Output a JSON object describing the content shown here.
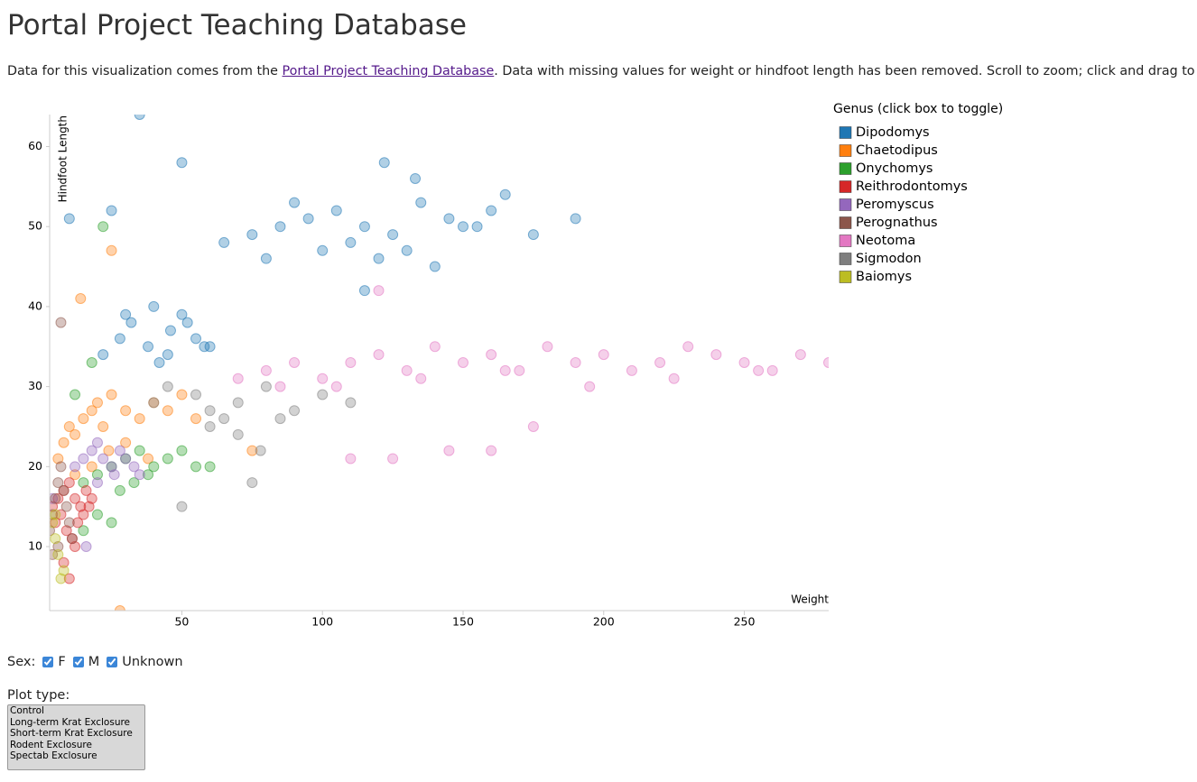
{
  "header": {
    "title": "Portal Project Teaching Database"
  },
  "intro": {
    "before": "Data for this visualization comes from the ",
    "link": "Portal Project Teaching Database",
    "after": ". Data with missing values for weight or hindfoot length has been removed. Scroll to zoom; click and drag to move."
  },
  "chart_data": {
    "type": "scatter",
    "x_label": "Weight",
    "y_label": "Hindfoot Length",
    "legend_title": "Genus (click box to toggle)",
    "legend": "right",
    "xlim": [
      3,
      280
    ],
    "ylim": [
      2,
      64
    ],
    "xticks": [
      50,
      100,
      150,
      200,
      250
    ],
    "yticks": [
      10,
      20,
      30,
      40,
      50,
      60
    ],
    "series": [
      {
        "name": "Dipodomys",
        "color": "#1f77b4",
        "x": [
          35,
          50,
          10,
          25,
          190,
          122,
          133,
          115,
          22,
          28,
          32,
          38,
          42,
          46,
          50,
          55,
          60,
          30,
          40,
          45,
          52,
          58,
          65,
          75,
          85,
          95,
          105,
          115,
          125,
          135,
          145,
          155,
          165,
          175,
          80,
          100,
          120,
          140,
          160,
          90,
          110,
          130,
          150
        ],
        "values": [
          64,
          58,
          51,
          52,
          51,
          58,
          56,
          42,
          34,
          36,
          38,
          35,
          33,
          37,
          39,
          36,
          35,
          39,
          40,
          34,
          38,
          35,
          48,
          49,
          50,
          51,
          52,
          50,
          49,
          53,
          51,
          50,
          54,
          49,
          46,
          47,
          46,
          45,
          52,
          53,
          48,
          47,
          50
        ]
      },
      {
        "name": "Chaetodipus",
        "color": "#ff7f0e",
        "x": [
          28,
          14,
          25,
          75,
          6,
          8,
          10,
          12,
          15,
          18,
          20,
          22,
          25,
          30,
          35,
          40,
          45,
          50,
          55,
          12,
          18,
          24,
          30,
          38
        ],
        "values": [
          2,
          41,
          47,
          22,
          21,
          23,
          25,
          24,
          26,
          27,
          28,
          25,
          29,
          27,
          26,
          28,
          27,
          29,
          26,
          19,
          20,
          22,
          23,
          21
        ]
      },
      {
        "name": "Onychomys",
        "color": "#2ca02c",
        "x": [
          22,
          12,
          18,
          15,
          20,
          25,
          30,
          35,
          40,
          45,
          50,
          55,
          60,
          28,
          33,
          38,
          20,
          25,
          15
        ],
        "values": [
          50,
          29,
          33,
          18,
          19,
          20,
          21,
          22,
          20,
          21,
          22,
          20,
          20,
          17,
          18,
          19,
          14,
          13,
          12
        ]
      },
      {
        "name": "Reithrodontomys",
        "color": "#d62728",
        "x": [
          4,
          6,
          8,
          10,
          12,
          14,
          16,
          18,
          5,
          7,
          9,
          11,
          13,
          15,
          17,
          8,
          10,
          12
        ],
        "values": [
          15,
          16,
          17,
          18,
          16,
          15,
          17,
          16,
          13,
          14,
          12,
          11,
          13,
          14,
          15,
          8,
          6,
          10
        ]
      },
      {
        "name": "Peromyscus",
        "color": "#9467bd",
        "x": [
          12,
          15,
          18,
          20,
          22,
          25,
          28,
          30,
          33,
          35,
          16,
          4,
          20,
          26
        ],
        "values": [
          20,
          21,
          22,
          23,
          21,
          20,
          22,
          21,
          20,
          19,
          10,
          16,
          18,
          19
        ]
      },
      {
        "name": "Perognathus",
        "color": "#8c564b",
        "x": [
          7,
          3,
          4,
          5,
          6,
          7,
          8,
          9,
          10,
          11,
          4,
          6
        ],
        "values": [
          38,
          12,
          14,
          16,
          18,
          20,
          17,
          15,
          13,
          11,
          9,
          10
        ]
      },
      {
        "name": "Neotoma",
        "color": "#e377c2",
        "x": [
          120,
          145,
          160,
          175,
          110,
          125,
          70,
          80,
          90,
          100,
          110,
          120,
          130,
          140,
          150,
          160,
          170,
          180,
          190,
          200,
          210,
          220,
          230,
          240,
          250,
          260,
          270,
          280,
          85,
          105,
          135,
          165,
          195,
          225,
          255
        ],
        "values": [
          42,
          22,
          22,
          25,
          21,
          21,
          31,
          32,
          33,
          31,
          33,
          34,
          32,
          35,
          33,
          34,
          32,
          35,
          33,
          34,
          32,
          33,
          35,
          34,
          33,
          32,
          34,
          33,
          30,
          30,
          31,
          32,
          30,
          31,
          32
        ]
      },
      {
        "name": "Sigmodon",
        "color": "#7f7f7f",
        "x": [
          50,
          75,
          78,
          40,
          45,
          55,
          60,
          65,
          70,
          80,
          90,
          100,
          110,
          60,
          70,
          85
        ],
        "values": [
          15,
          18,
          22,
          28,
          30,
          29,
          27,
          26,
          28,
          30,
          27,
          29,
          28,
          25,
          24,
          26
        ]
      },
      {
        "name": "Baiomys",
        "color": "#bcbd22",
        "x": [
          4,
          5,
          6,
          7,
          8,
          5
        ],
        "values": [
          13,
          11,
          9,
          6,
          7,
          14
        ]
      }
    ]
  },
  "controls": {
    "sex_label": "Sex:",
    "sex_options": [
      "F",
      "M",
      "Unknown"
    ],
    "plot_type_label": "Plot type:",
    "plot_types": [
      "Control",
      "Long-term Krat Exclosure",
      "Short-term Krat Exclosure",
      "Rodent Exclosure",
      "Spectab Exclosure"
    ]
  }
}
